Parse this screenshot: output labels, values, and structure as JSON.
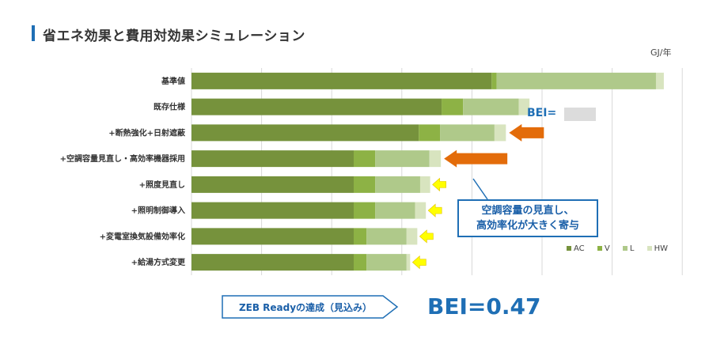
{
  "header": {
    "title": "省エネ効果と費用対効果シミュレーション"
  },
  "chart_data": {
    "type": "bar",
    "orientation": "horizontal",
    "stacked": true,
    "unit_label": "GJ/年",
    "categories": [
      "基準値",
      "既存仕様",
      "+断熱強化+日射遮蔽",
      "+空調容量見直し・高効率機器採用",
      "+照度見直し",
      "+照明制御導入",
      "+変電室換気設備効率化",
      "+給湯方式変更"
    ],
    "series": [
      {
        "name": "AC",
        "color": "#76923c",
        "values": [
          420,
          350,
          318,
          227,
          227,
          227,
          227,
          227
        ]
      },
      {
        "name": "V",
        "color": "#8db245",
        "values": [
          7,
          30,
          30,
          30,
          30,
          30,
          18,
          18
        ]
      },
      {
        "name": "L",
        "color": "#afc98a",
        "values": [
          223,
          78,
          76,
          76,
          63,
          56,
          56,
          56
        ]
      },
      {
        "name": "HW",
        "color": "#d8e4bf",
        "values": [
          11,
          15,
          16,
          16,
          14,
          15,
          15,
          5
        ]
      }
    ],
    "xlim": [
      0,
      660
    ],
    "grid": true,
    "legend_position": "bottom-right"
  },
  "annotations": {
    "bei_label": "BEI=",
    "callout_line1": "空調容量の見直し、",
    "callout_line2": "高効率化が大きく寄与",
    "zeb_label": "ZEB Readyの達成（見込み）",
    "bei_result": "BEI=0.47",
    "accent_color": "#1f6fb5",
    "arrow_orange": "#e36c0a",
    "arrow_yellow": "#ffff00"
  }
}
